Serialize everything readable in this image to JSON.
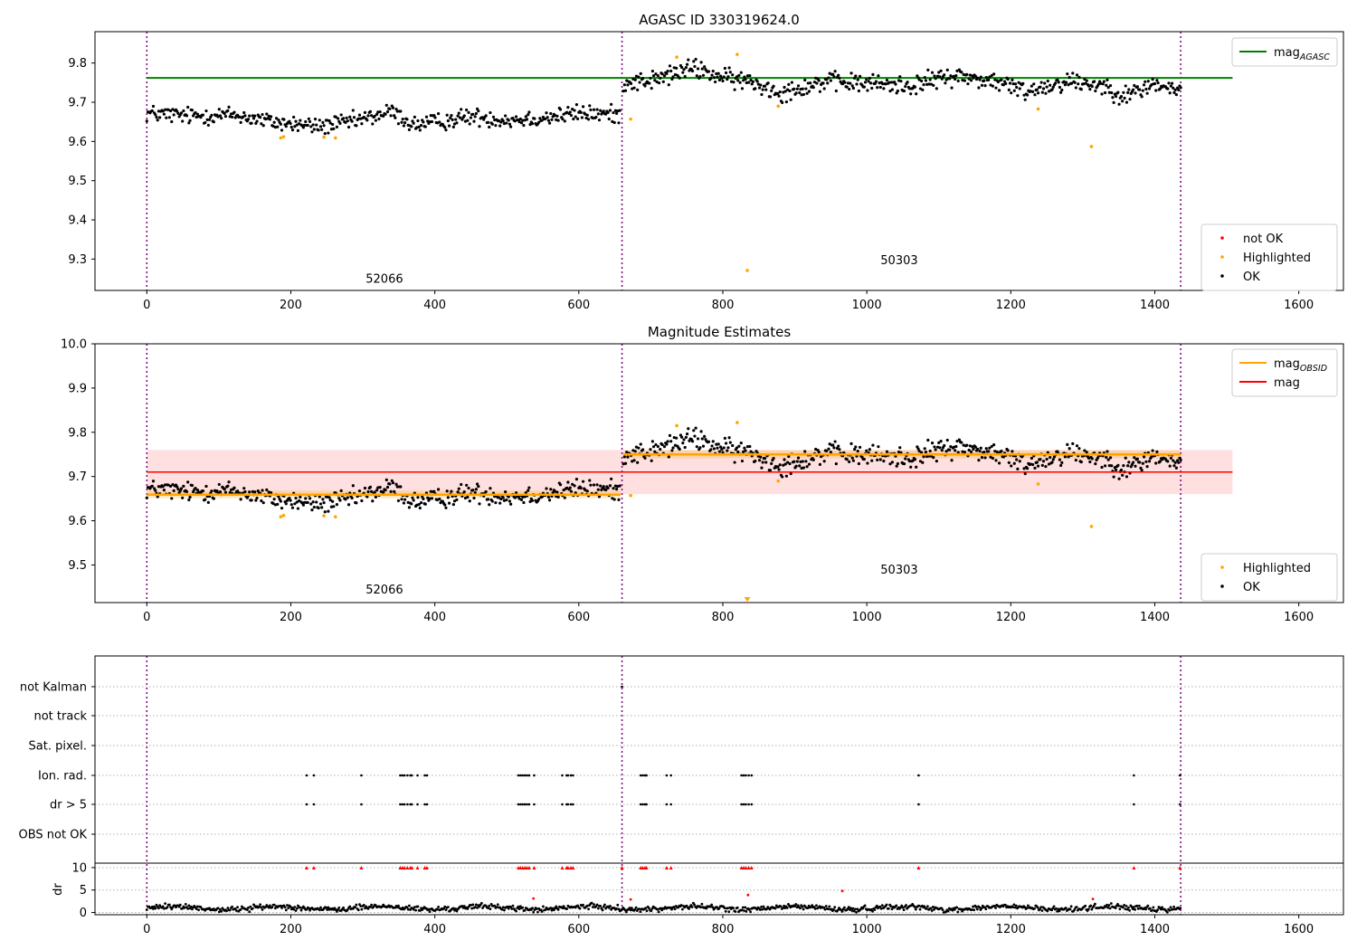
{
  "chart_data": [
    {
      "type": "scatter",
      "title": "AGASC ID 330319624.0",
      "xlim": [
        -72,
        1662
      ],
      "ylim": [
        9.22,
        9.88
      ],
      "xticks": [
        0,
        200,
        400,
        600,
        800,
        1000,
        1200,
        1400,
        1600
      ],
      "yticks": [
        9.3,
        9.4,
        9.5,
        9.6,
        9.7,
        9.8
      ],
      "obs_boundaries": [
        0,
        660,
        1436
      ],
      "obs_labels": [
        {
          "text": "52066",
          "x": 330,
          "y": 9.24
        },
        {
          "text": "50303",
          "x": 1045,
          "y": 9.287
        }
      ],
      "lines": [
        {
          "name": "mag",
          "sub": "AGASC",
          "color": "#008000",
          "x": [
            0,
            1508
          ],
          "y": [
            9.762,
            9.762
          ]
        }
      ],
      "series_ok": {
        "name": "OK",
        "color": "#000000",
        "segments": [
          {
            "x0": 0,
            "x1": 658,
            "knots_x": [
              0,
              60,
              120,
              180,
              240,
              290,
              340,
              370,
              400,
              450,
              500,
              550,
              600,
              658
            ],
            "knots_y": [
              9.672,
              9.665,
              9.668,
              9.648,
              9.638,
              9.652,
              9.676,
              9.642,
              9.648,
              9.664,
              9.655,
              9.66,
              9.672,
              9.668
            ],
            "noise": 0.011
          },
          {
            "x0": 662,
            "x1": 1436,
            "knots_x": [
              662,
              700,
              760,
              800,
              840,
              880,
              940,
              1000,
              1060,
              1120,
              1180,
              1220,
              1280,
              1330,
              1360,
              1400,
              1436
            ],
            "knots_y": [
              9.752,
              9.755,
              9.788,
              9.762,
              9.752,
              9.725,
              9.752,
              9.748,
              9.742,
              9.768,
              9.752,
              9.728,
              9.755,
              9.742,
              9.715,
              9.748,
              9.725
            ],
            "noise": 0.012
          }
        ]
      },
      "series_highlighted": {
        "name": "Highlighted",
        "color": "#FFA500",
        "points": [
          [
            186,
            9.609
          ],
          [
            190,
            9.612
          ],
          [
            246,
            9.611
          ],
          [
            262,
            9.609
          ],
          [
            672,
            9.657
          ],
          [
            736,
            9.815
          ],
          [
            820,
            9.822
          ],
          [
            834,
            9.271
          ],
          [
            877,
            9.69
          ],
          [
            1238,
            9.683
          ],
          [
            1312,
            9.587
          ]
        ]
      },
      "series_notok": {
        "name": "not OK",
        "color": "#FF0000",
        "points": []
      },
      "legend_upper": [
        {
          "label": "mag",
          "sub": "AGASC",
          "kind": "line",
          "color": "#008000"
        }
      ],
      "legend_lower": [
        {
          "label": "not OK",
          "kind": "dot",
          "color": "#FF0000"
        },
        {
          "label": "Highlighted",
          "kind": "dot",
          "color": "#FFA500"
        },
        {
          "label": "OK",
          "kind": "dot",
          "color": "#000000"
        }
      ]
    },
    {
      "type": "scatter",
      "title": "Magnitude Estimates",
      "xlim": [
        -72,
        1662
      ],
      "ylim": [
        9.415,
        10.0
      ],
      "xticks": [
        0,
        200,
        400,
        600,
        800,
        1000,
        1200,
        1400,
        1600
      ],
      "yticks": [
        9.5,
        9.6,
        9.7,
        9.8,
        9.9,
        10.0
      ],
      "obs_boundaries": [
        0,
        660,
        1436
      ],
      "obs_labels": [
        {
          "text": "52066",
          "x": 330,
          "y": 9.435
        },
        {
          "text": "50303",
          "x": 1045,
          "y": 9.48
        }
      ],
      "bands": [
        {
          "x0": 0,
          "x1": 1508,
          "y0": 9.66,
          "y1": 9.76,
          "color": "#FF0000",
          "opacity": 0.12
        },
        {
          "x0": 0,
          "x1": 658,
          "y0": 9.651,
          "y1": 9.668,
          "color": "#FFA500",
          "opacity": 0.25
        },
        {
          "x0": 662,
          "x1": 1436,
          "y0": 9.741,
          "y1": 9.759,
          "color": "#FFA500",
          "opacity": 0.25
        }
      ],
      "lines": [
        {
          "name": "mag",
          "sub": "OBSID",
          "color": "#FFA500",
          "width": 2.5,
          "segments": [
            [
              0,
              658,
              9.659
            ],
            [
              662,
              1436,
              9.75
            ]
          ]
        },
        {
          "name": "mag",
          "sub": "",
          "color": "#FF0000",
          "width": 1.5,
          "segments": [
            [
              0,
              1508,
              9.71
            ]
          ]
        }
      ],
      "series_ok_same_as_panel": 0,
      "series_highlighted": {
        "name": "Highlighted",
        "color": "#FFA500",
        "points": [
          [
            186,
            9.609
          ],
          [
            190,
            9.612
          ],
          [
            246,
            9.611
          ],
          [
            262,
            9.609
          ],
          [
            672,
            9.657
          ],
          [
            736,
            9.815
          ],
          [
            820,
            9.822
          ],
          [
            834,
            9.42
          ],
          [
            877,
            9.69
          ],
          [
            1238,
            9.683
          ],
          [
            1312,
            9.587
          ]
        ]
      },
      "legend_upper": [
        {
          "label": "mag",
          "sub": "OBSID",
          "kind": "line",
          "color": "#FFA500"
        },
        {
          "label": "mag",
          "sub": "",
          "kind": "line",
          "color": "#FF0000"
        }
      ],
      "legend_lower": [
        {
          "label": "Highlighted",
          "kind": "dot",
          "color": "#FFA500"
        },
        {
          "label": "OK",
          "kind": "dot",
          "color": "#000000"
        }
      ]
    },
    {
      "type": "scatter",
      "title": "",
      "xlim": [
        -72,
        1662
      ],
      "xticks": [
        0,
        200,
        400,
        600,
        800,
        1000,
        1200,
        1400,
        1600
      ],
      "obs_boundaries": [
        0,
        660,
        1436
      ],
      "flag_rows": [
        "not Kalman",
        "not track",
        "Sat. pixel.",
        "Ion. rad.",
        "dr > 5",
        "OBS not OK"
      ],
      "flag_points": {
        "not Kalman": [
          660
        ],
        "not track": [],
        "Sat. pixel.": [],
        "Ion. rad.": [
          222,
          232,
          298,
          352,
          355,
          358,
          362,
          366,
          368,
          376,
          386,
          389,
          516,
          519,
          522,
          525,
          528,
          531,
          538,
          577,
          583,
          585,
          589,
          592,
          686,
          689,
          692,
          694,
          722,
          728,
          826,
          829,
          832,
          836,
          840,
          1072,
          1371,
          1435
        ],
        "dr > 5": [
          222,
          232,
          298,
          352,
          355,
          358,
          362,
          366,
          368,
          376,
          386,
          389,
          516,
          519,
          522,
          525,
          528,
          531,
          538,
          577,
          583,
          585,
          589,
          592,
          686,
          689,
          692,
          694,
          722,
          728,
          826,
          829,
          832,
          836,
          840,
          1072,
          1371,
          1435
        ],
        "OBS not OK": []
      },
      "dr": {
        "ylabel": "dr",
        "ylim": [
          -0.5,
          11
        ],
        "yticks": [
          0,
          5,
          10
        ],
        "clipped_value": 10,
        "clipped_x": [
          222,
          232,
          298,
          352,
          355,
          358,
          362,
          366,
          368,
          376,
          386,
          389,
          516,
          519,
          522,
          525,
          528,
          531,
          538,
          577,
          583,
          585,
          589,
          592,
          660,
          686,
          689,
          692,
          694,
          722,
          728,
          826,
          829,
          832,
          836,
          840,
          1072,
          1371,
          1435
        ],
        "outliers": [
          [
            537,
            3.1
          ],
          [
            672,
            2.9
          ],
          [
            835,
            3.9
          ],
          [
            966,
            4.8
          ],
          [
            1314,
            3.0
          ]
        ],
        "baseline": 1.0,
        "noise": 0.6
      }
    }
  ]
}
